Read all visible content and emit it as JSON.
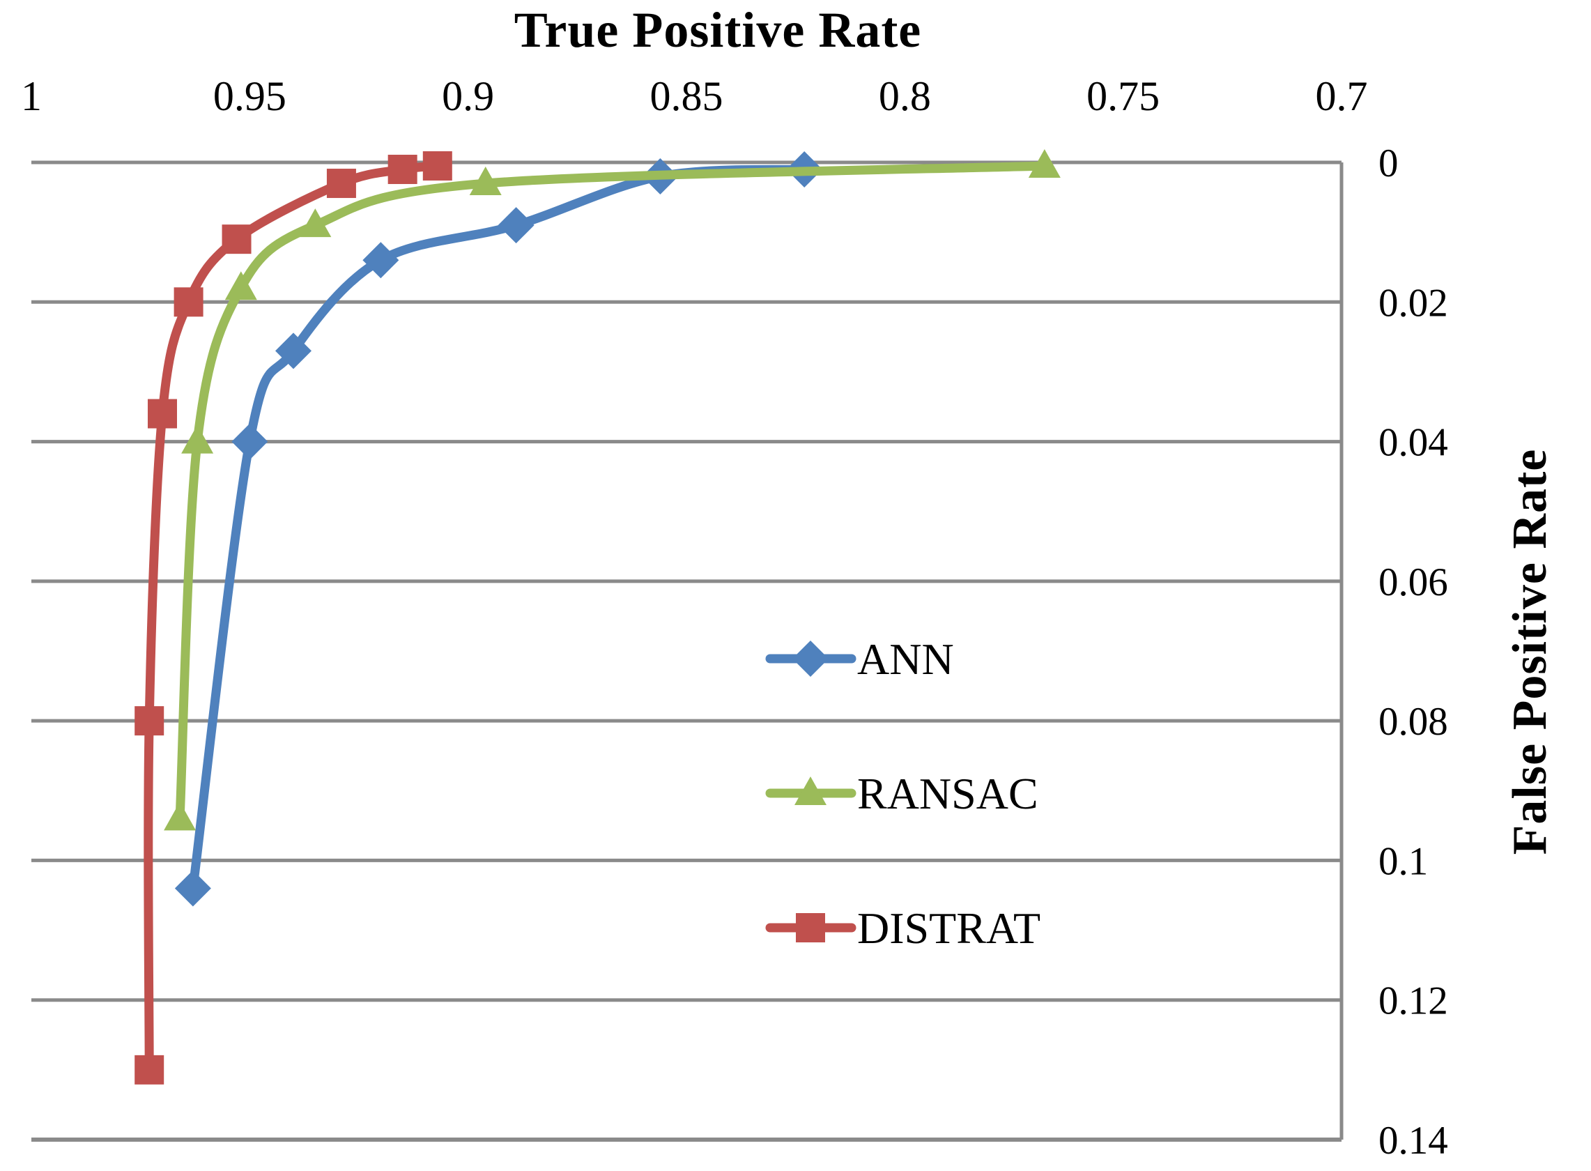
{
  "chart_data": {
    "type": "line",
    "title": "",
    "x_axis": {
      "title": "True Positive Rate",
      "min": 0.7,
      "max": 1.0,
      "reversed": true,
      "tick_labels": [
        "1",
        "0.95",
        "0.9",
        "0.85",
        "0.8",
        "0.75",
        "0.7"
      ]
    },
    "y_axis": {
      "title": "False Positive Rate",
      "min": 0,
      "max": 0.14,
      "tick_labels": [
        "0",
        "0.02",
        "0.04",
        "0.06",
        "0.08",
        "0.1",
        "0.12",
        "0.14"
      ]
    },
    "grid": "horizontal",
    "legend_position": "inside-right",
    "colors": {
      "background": "#FFFFFF",
      "gridline": "#8A8A8A",
      "border": "#8A8A8A",
      "text": "#000000",
      "ann_blue": "#4F81BD",
      "ransac_green": "#9BBB59",
      "distrat_red": "#C0504D"
    },
    "series": [
      {
        "name": "ANN",
        "color": "#4F81BD",
        "marker": "diamond",
        "points": [
          [
            0.823,
            0.001
          ],
          [
            0.856,
            0.002
          ],
          [
            0.889,
            0.009
          ],
          [
            0.92,
            0.014
          ],
          [
            0.94,
            0.027
          ],
          [
            0.95,
            0.04
          ],
          [
            0.963,
            0.104
          ]
        ]
      },
      {
        "name": "RANSAC",
        "color": "#9BBB59",
        "marker": "triangle",
        "points": [
          [
            0.768,
            0.0005
          ],
          [
            0.896,
            0.003
          ],
          [
            0.935,
            0.009
          ],
          [
            0.952,
            0.018
          ],
          [
            0.962,
            0.04
          ],
          [
            0.966,
            0.094
          ]
        ]
      },
      {
        "name": "DISTRAT",
        "color": "#C0504D",
        "marker": "square",
        "points": [
          [
            0.907,
            0.0005
          ],
          [
            0.915,
            0.001
          ],
          [
            0.929,
            0.003
          ],
          [
            0.953,
            0.011
          ],
          [
            0.964,
            0.02
          ],
          [
            0.97,
            0.036
          ],
          [
            0.973,
            0.08
          ],
          [
            0.973,
            0.13
          ]
        ]
      }
    ]
  }
}
